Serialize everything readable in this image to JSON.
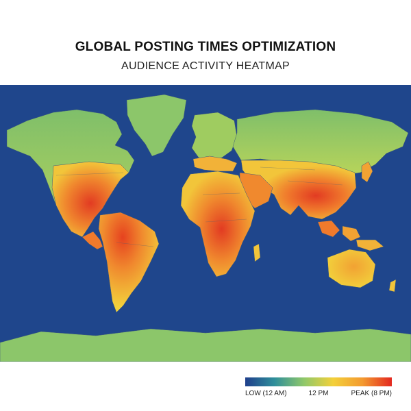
{
  "title": "GLOBAL POSTING TIMES OPTIMIZATION",
  "subtitle": "AUDIENCE ACTIVITY HEATMAP",
  "legend": {
    "low_label": "LOW (12 AM)",
    "mid_label": "12 PM",
    "peak_label": "PEAK (8 PM)",
    "gradient_colors": [
      "#1f3f8c",
      "#2f8f9a",
      "#8fc86a",
      "#f3d03a",
      "#f39a30",
      "#e3281f"
    ]
  },
  "colors": {
    "ocean": "#1b3f86",
    "ocean_shallow": "#2a5aa0",
    "land_low": "#8cc66a",
    "land_mid": "#f2c53a",
    "land_high": "#f0892e",
    "land_peak": "#e23b22"
  }
}
